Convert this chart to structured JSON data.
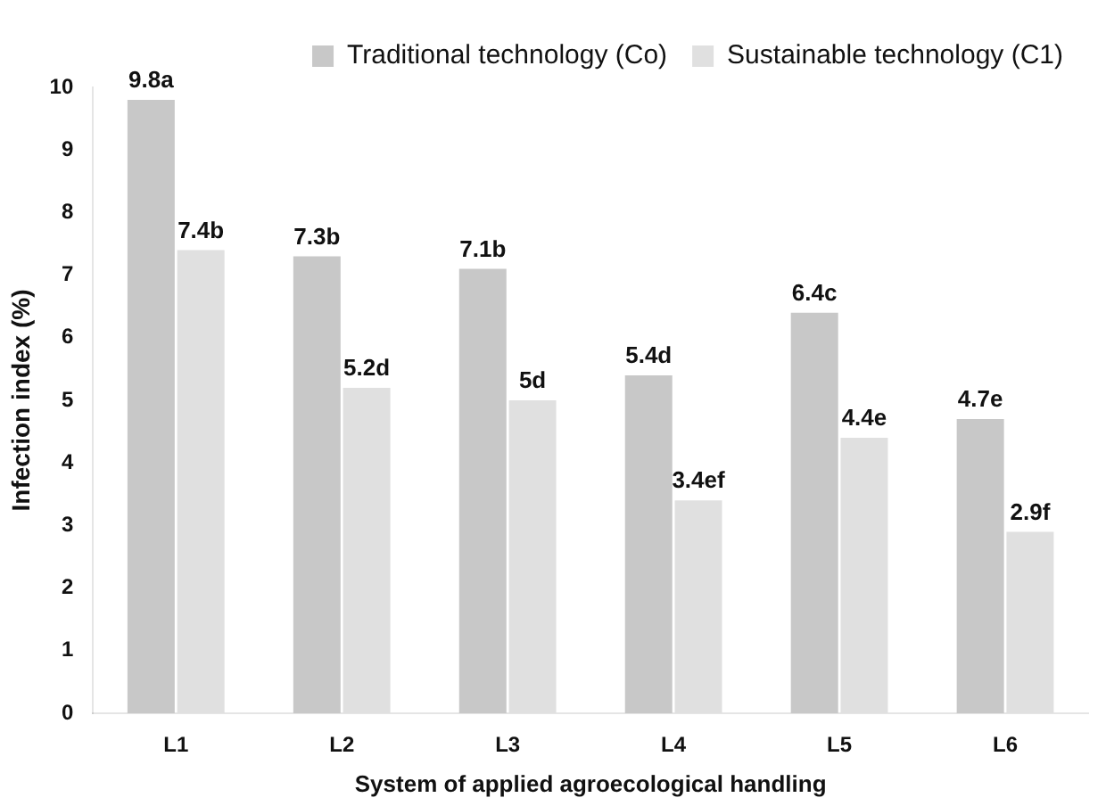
{
  "chart_data": {
    "type": "bar",
    "xlabel": "System of applied agroecological handling",
    "ylabel": "Infection index (%)",
    "categories": [
      "L1",
      "L2",
      "L3",
      "L4",
      "L5",
      "L6"
    ],
    "series": [
      {
        "name": "Traditional technology (Co)",
        "color": "#c8c8c8",
        "values": [
          9.8,
          7.3,
          7.1,
          5.4,
          6.4,
          4.7
        ],
        "value_labels": [
          "9.8a",
          "7.3b",
          "7.1b",
          "5.4d",
          "6.4c",
          "4.7e"
        ]
      },
      {
        "name": "Sustainable technology (C1)",
        "color": "#e0e0e0",
        "values": [
          7.4,
          5.2,
          5,
          3.4,
          4.4,
          2.9
        ],
        "value_labels": [
          "7.4b",
          "5.2d",
          "5d",
          "3.4ef",
          "4.4e",
          "2.9f"
        ]
      }
    ],
    "ylim": [
      0,
      10
    ],
    "yticks": [
      0,
      1,
      2,
      3,
      4,
      5,
      6,
      7,
      8,
      9,
      10
    ],
    "grid": false,
    "legend": "top right"
  }
}
